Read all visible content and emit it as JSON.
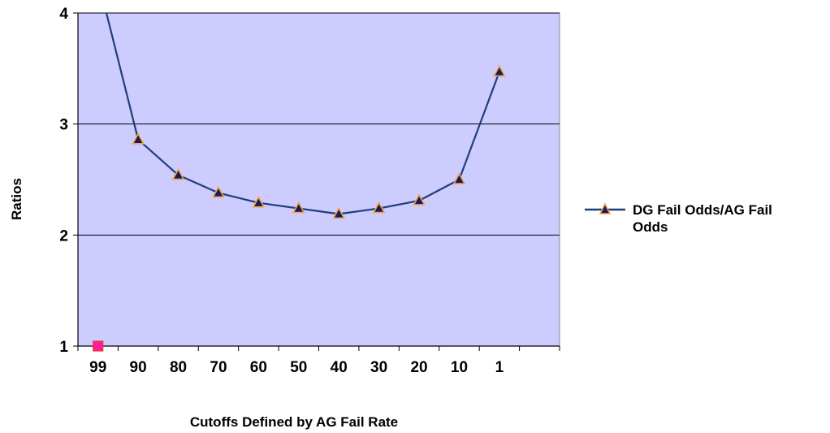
{
  "chart_data": {
    "type": "line",
    "title": "",
    "xlabel": "Cutoffs Defined by AG Fail Rate",
    "ylabel": "Ratios",
    "categories": [
      "99",
      "90",
      "80",
      "70",
      "60",
      "50",
      "40",
      "30",
      "20",
      "10",
      "1"
    ],
    "ylim": [
      1,
      4
    ],
    "yticks": [
      "1",
      "2",
      "3",
      "4"
    ],
    "grid": true,
    "legend_position": "right",
    "series": [
      {
        "name": "DG Fail Odds/AG Fail Odds",
        "values": [
          4.3,
          2.86,
          2.54,
          2.38,
          2.29,
          2.24,
          2.19,
          2.24,
          2.31,
          2.5,
          3.47
        ],
        "color": "#1f3f7a",
        "marker": "triangle",
        "marker_fill": "#1a1a60",
        "marker_edge": "#f4a442"
      }
    ],
    "extra_point": {
      "category": "99",
      "value": 1,
      "color": "#ff1aa0",
      "edge": "#e04020",
      "marker": "square"
    },
    "plot_background": "#ccccff"
  }
}
